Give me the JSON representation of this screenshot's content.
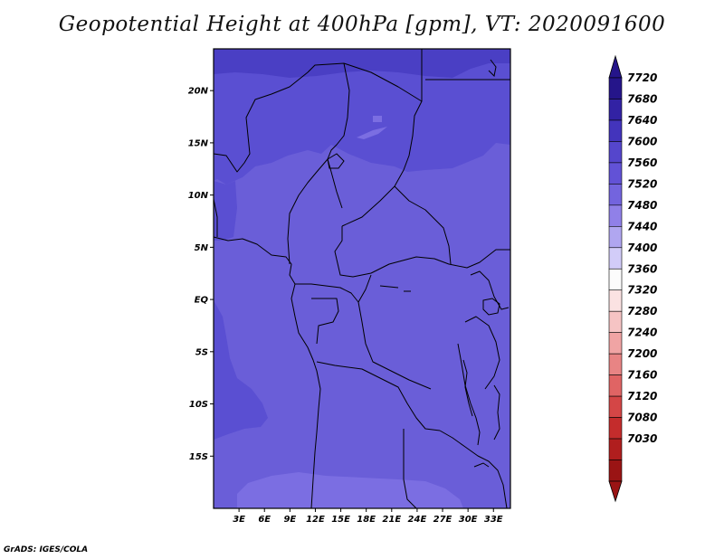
{
  "title": "Geopotential Height at 400hPa [gpm], VT: 2020091600",
  "credit": "GrADS: IGES/COLA",
  "map": {
    "lat_range": [
      -20,
      24
    ],
    "lon_range": [
      0,
      35
    ],
    "lat_ticks": [
      {
        "lat": 20,
        "label": "20N"
      },
      {
        "lat": 15,
        "label": "15N"
      },
      {
        "lat": 10,
        "label": "10N"
      },
      {
        "lat": 5,
        "label": "5N"
      },
      {
        "lat": 0,
        "label": "EQ"
      },
      {
        "lat": -5,
        "label": "5S"
      },
      {
        "lat": -10,
        "label": "10S"
      },
      {
        "lat": -15,
        "label": "15S"
      }
    ],
    "lon_ticks": [
      {
        "lon": 3,
        "label": "3E"
      },
      {
        "lon": 6,
        "label": "6E"
      },
      {
        "lon": 9,
        "label": "9E"
      },
      {
        "lon": 12,
        "label": "12E"
      },
      {
        "lon": 15,
        "label": "15E"
      },
      {
        "lon": 18,
        "label": "18E"
      },
      {
        "lon": 21,
        "label": "21E"
      },
      {
        "lon": 24,
        "label": "24E"
      },
      {
        "lon": 27,
        "label": "27E"
      },
      {
        "lon": 30,
        "label": "30E"
      },
      {
        "lon": 33,
        "label": "33E"
      }
    ],
    "fill_colors": {
      "7640": "#4a3fc4",
      "7600": "#5a4fd2",
      "7560": "#6a5ed8",
      "7520": "#7b6ee2"
    }
  },
  "colorbar": {
    "levels": [
      "7720",
      "7680",
      "7640",
      "7600",
      "7560",
      "7520",
      "7480",
      "7440",
      "7400",
      "7360",
      "7320",
      "7280",
      "7240",
      "7200",
      "7160",
      "7120",
      "7080",
      "7030"
    ],
    "colors": [
      "#25158a",
      "#3222a4",
      "#4334bc",
      "#5546cc",
      "#6252d6",
      "#7364de",
      "#9080e8",
      "#b0a6f0",
      "#d2ccf8",
      "#fcfcfc",
      "#fbe2e2",
      "#f6c4c4",
      "#f0a4a4",
      "#e88484",
      "#e06464",
      "#d44646",
      "#c42c2c",
      "#b01e1e",
      "#9a1414"
    ],
    "top_arrow_color": "#25158a",
    "bottom_arrow_color": "#9a1414"
  }
}
